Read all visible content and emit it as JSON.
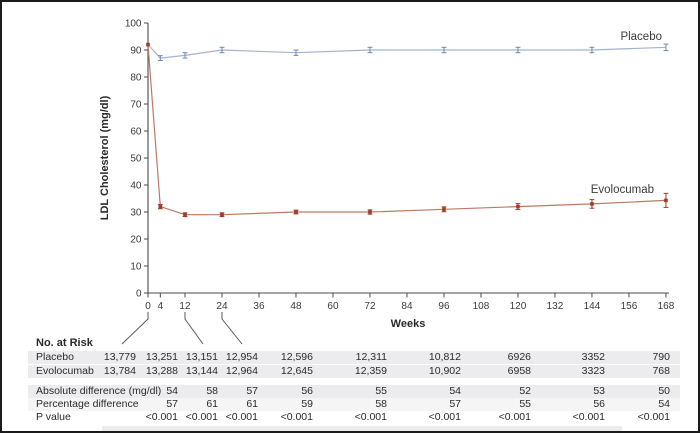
{
  "chart_data": {
    "type": "line",
    "title": "",
    "xlabel": "Weeks",
    "ylabel": "LDL Cholesterol (mg/dl)",
    "xlim": [
      0,
      168
    ],
    "ylim": [
      0,
      100
    ],
    "x_ticks": [
      0,
      4,
      12,
      24,
      36,
      48,
      60,
      72,
      84,
      96,
      108,
      120,
      132,
      144,
      156,
      168
    ],
    "y_ticks": [
      100,
      90,
      80,
      70,
      60,
      50,
      40,
      30,
      20,
      10,
      0
    ],
    "grid": false,
    "legend": "inline labels at line ends",
    "x": [
      0,
      4,
      12,
      24,
      48,
      72,
      96,
      120,
      144,
      168
    ],
    "series": [
      {
        "name": "Placebo",
        "line_color": "#a2b3cf",
        "marker_color": "#6d87b1",
        "values": [
          92,
          87,
          88,
          90,
          89,
          90,
          90,
          90,
          90,
          91
        ],
        "err": [
          0,
          0.9,
          1.0,
          1.0,
          1.0,
          1.0,
          1.0,
          1.0,
          1.0,
          1.2
        ]
      },
      {
        "name": "Evolocumab",
        "line_color": "#bd7a63",
        "marker_color": "#9e3b29",
        "values": [
          92,
          32,
          29,
          29,
          30,
          30,
          31,
          32,
          33,
          34.3
        ],
        "err": [
          0,
          0.8,
          0.7,
          0.7,
          0.7,
          0.8,
          0.9,
          1.1,
          1.6,
          2.6
        ]
      }
    ],
    "leaders": [
      {
        "week": 0,
        "col": 0
      },
      {
        "week": 12,
        "col": 2
      },
      {
        "week": 24,
        "col": 3
      }
    ]
  },
  "risk_table": {
    "header": "No. at Risk",
    "rows": [
      {
        "label": "Placebo",
        "shade": "full",
        "values": [
          "13,779",
          "13,251",
          "13,151",
          "12,954",
          "12,596",
          "12,311",
          "10,812",
          "6926",
          "3352",
          "790"
        ]
      },
      {
        "label": "Evolocumab",
        "shade": "full",
        "values": [
          "13,784",
          "13,288",
          "13,144",
          "12,964",
          "12,645",
          "12,359",
          "10,902",
          "6958",
          "3323",
          "768"
        ]
      },
      {
        "label": "Absolute difference (mg/dl)",
        "shade": "full",
        "values": [
          "",
          "54",
          "58",
          "57",
          "56",
          "55",
          "54",
          "52",
          "53",
          "50"
        ]
      },
      {
        "label": "Percentage difference",
        "shade": "light",
        "values": [
          "",
          "57",
          "61",
          "61",
          "59",
          "58",
          "57",
          "55",
          "56",
          "54"
        ]
      },
      {
        "label": "P value",
        "shade": "none",
        "values": [
          "",
          "<0.001",
          "<0.001",
          "<0.001",
          "<0.001",
          "<0.001",
          "<0.001",
          "<0.001",
          "<0.001",
          "<0.001"
        ]
      }
    ]
  },
  "colors": {
    "axis": "#4b4b4d",
    "text": "#2a2a2a",
    "label_text": "#3a3a3c",
    "leader": "#58595b",
    "stripe": "#ececee",
    "stripe_light": "#f5f5f6",
    "border": "#1b1b1b"
  }
}
